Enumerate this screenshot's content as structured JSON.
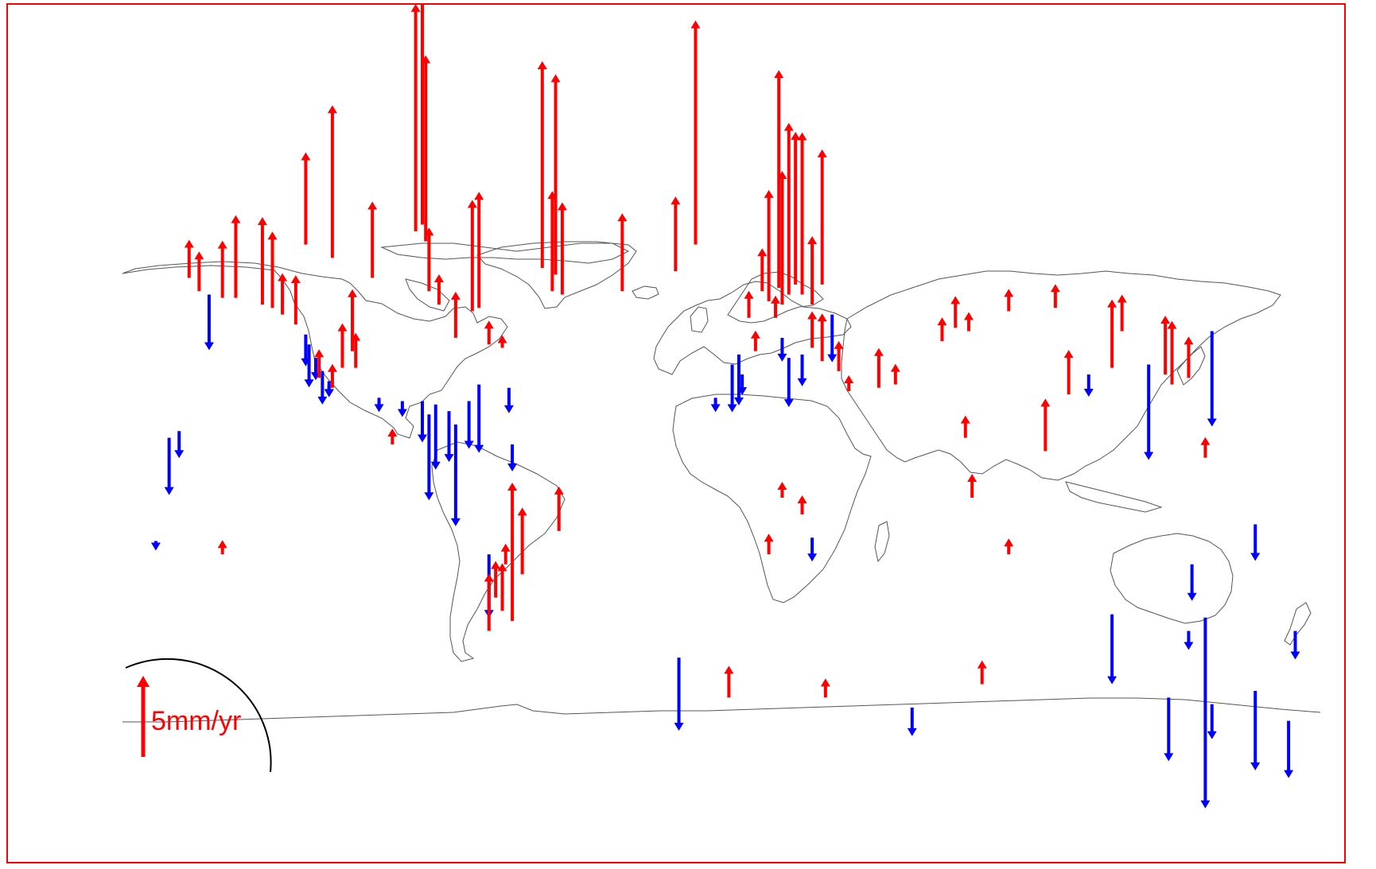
{
  "map": {
    "projection": "plate-carree",
    "lon_range": [
      -180,
      180
    ],
    "colors": {
      "uplift": "#ff0000",
      "subsidence": "#0000ff",
      "coastline": "#555555",
      "frame": "#ff0000"
    },
    "legend": {
      "label": "5mm/yr",
      "value_mm_per_yr": 5,
      "color": "#ff0000"
    },
    "stations": [
      {
        "lon": -160,
        "lat": 66,
        "rate": 2.4
      },
      {
        "lon": -157,
        "lat": 62,
        "rate": 2.5
      },
      {
        "lon": -154,
        "lat": 61,
        "rate": -3.5
      },
      {
        "lon": -150,
        "lat": 60,
        "rate": 3.6
      },
      {
        "lon": -146,
        "lat": 60,
        "rate": 5.2
      },
      {
        "lon": -138,
        "lat": 58,
        "rate": 5.5
      },
      {
        "lon": -135,
        "lat": 57,
        "rate": 4.8
      },
      {
        "lon": -132,
        "lat": 55,
        "rate": 2.6
      },
      {
        "lon": -128,
        "lat": 52,
        "rate": 3.1
      },
      {
        "lon": -125,
        "lat": 49,
        "rate": -2.0
      },
      {
        "lon": -124,
        "lat": 46,
        "rate": -2.7
      },
      {
        "lon": -122,
        "lat": 42,
        "rate": -1.4
      },
      {
        "lon": -120,
        "lat": 38,
        "rate": -2.1
      },
      {
        "lon": -118,
        "lat": 35,
        "rate": -1.0
      },
      {
        "lon": -118,
        "lat": 34,
        "rate": -0.8
      },
      {
        "lon": -121,
        "lat": 36,
        "rate": 1.8
      },
      {
        "lon": -117,
        "lat": 33,
        "rate": 1.5
      },
      {
        "lon": -114,
        "lat": 39,
        "rate": 2.8
      },
      {
        "lon": -111,
        "lat": 44,
        "rate": 3.9
      },
      {
        "lon": -110,
        "lat": 39,
        "rate": 2.2
      },
      {
        "lon": -125,
        "lat": 76,
        "rate": 5.8
      },
      {
        "lon": -117,
        "lat": 72,
        "rate": 9.6
      },
      {
        "lon": -105,
        "lat": 66,
        "rate": 4.8
      },
      {
        "lon": -92,
        "lat": 80,
        "rate": 14.3
      },
      {
        "lon": -90,
        "lat": 82,
        "rate": 14.5
      },
      {
        "lon": -89,
        "lat": 77,
        "rate": 11.7
      },
      {
        "lon": -88,
        "lat": 62,
        "rate": 4.0
      },
      {
        "lon": -85,
        "lat": 58,
        "rate": 1.9
      },
      {
        "lon": -80,
        "lat": 48,
        "rate": 2.9
      },
      {
        "lon": -75,
        "lat": 56,
        "rate": 7.0
      },
      {
        "lon": -73,
        "lat": 57,
        "rate": 7.3
      },
      {
        "lon": -70,
        "lat": 46,
        "rate": 1.5
      },
      {
        "lon": -66,
        "lat": 45,
        "rate": 0.8
      },
      {
        "lon": -103,
        "lat": 30,
        "rate": -0.9
      },
      {
        "lon": -96,
        "lat": 29,
        "rate": -1.0
      },
      {
        "lon": -90,
        "lat": 29,
        "rate": -2.6
      },
      {
        "lon": -88,
        "lat": 25,
        "rate": -5.4
      },
      {
        "lon": -86,
        "lat": 28,
        "rate": -4.1
      },
      {
        "lon": -82,
        "lat": 26,
        "rate": -3.2
      },
      {
        "lon": -80,
        "lat": 22,
        "rate": -6.4
      },
      {
        "lon": -76,
        "lat": 29,
        "rate": -3.0
      },
      {
        "lon": -73,
        "lat": 34,
        "rate": -4.3
      },
      {
        "lon": -64,
        "lat": 33,
        "rate": -1.6
      },
      {
        "lon": -63,
        "lat": 16,
        "rate": -1.7
      },
      {
        "lon": -99,
        "lat": 16,
        "rate": 1.0
      },
      {
        "lon": -54,
        "lat": 69,
        "rate": 13.0
      },
      {
        "lon": -50,
        "lat": 67,
        "rate": 12.6
      },
      {
        "lon": -51,
        "lat": 62,
        "rate": 6.3
      },
      {
        "lon": -48,
        "lat": 61,
        "rate": 5.8
      },
      {
        "lon": -30,
        "lat": 62,
        "rate": 4.9
      },
      {
        "lon": -14,
        "lat": 68,
        "rate": 4.7
      },
      {
        "lon": -8,
        "lat": 76,
        "rate": 14.1
      },
      {
        "lon": 5,
        "lat": 43,
        "rate": -3.2
      },
      {
        "lon": 3,
        "lat": 40,
        "rate": -3.0
      },
      {
        "lon": 6,
        "lat": 37,
        "rate": -1.3
      },
      {
        "lon": -2,
        "lat": 30,
        "rate": -0.9
      },
      {
        "lon": 8,
        "lat": 54,
        "rate": 1.7
      },
      {
        "lon": 10,
        "lat": 44,
        "rate": 1.3
      },
      {
        "lon": 12,
        "lat": 62,
        "rate": 2.7
      },
      {
        "lon": 14,
        "lat": 59,
        "rate": 7.0
      },
      {
        "lon": 17,
        "lat": 63,
        "rate": 13.7
      },
      {
        "lon": 18,
        "lat": 58,
        "rate": 8.4
      },
      {
        "lon": 20,
        "lat": 61,
        "rate": 10.8
      },
      {
        "lon": 22,
        "lat": 64,
        "rate": 9.6
      },
      {
        "lon": 24,
        "lat": 61,
        "rate": 10.2
      },
      {
        "lon": 27,
        "lat": 58,
        "rate": 4.3
      },
      {
        "lon": 30,
        "lat": 64,
        "rate": 8.5
      },
      {
        "lon": 16,
        "lat": 54,
        "rate": 1.4
      },
      {
        "lon": 18,
        "lat": 48,
        "rate": -1.5
      },
      {
        "lon": 20,
        "lat": 42,
        "rate": -3.1
      },
      {
        "lon": 24,
        "lat": 43,
        "rate": -2.0
      },
      {
        "lon": 27,
        "lat": 45,
        "rate": 2.3
      },
      {
        "lon": 30,
        "lat": 41,
        "rate": 3.0
      },
      {
        "lon": 33,
        "lat": 55,
        "rate": -3.0
      },
      {
        "lon": 35,
        "lat": 38,
        "rate": 1.9
      },
      {
        "lon": 38,
        "lat": 32,
        "rate": 1.0
      },
      {
        "lon": 47,
        "lat": 33,
        "rate": 2.5
      },
      {
        "lon": 52,
        "lat": 34,
        "rate": 1.3
      },
      {
        "lon": 66,
        "lat": 47,
        "rate": 1.5
      },
      {
        "lon": 70,
        "lat": 51,
        "rate": 2.0
      },
      {
        "lon": 74,
        "lat": 50,
        "rate": 1.2
      },
      {
        "lon": 86,
        "lat": 56,
        "rate": 1.4
      },
      {
        "lon": 100,
        "lat": 57,
        "rate": 1.5
      },
      {
        "lon": 120,
        "lat": 50,
        "rate": 2.3
      },
      {
        "lon": 133,
        "lat": 37,
        "rate": 3.7
      },
      {
        "lon": 135,
        "lat": 34,
        "rate": 4.0
      },
      {
        "lon": 140,
        "lat": 36,
        "rate": 2.6
      },
      {
        "lon": 117,
        "lat": 39,
        "rate": 4.3
      },
      {
        "lon": 110,
        "lat": 37,
        "rate": -1.4
      },
      {
        "lon": 104,
        "lat": 31,
        "rate": 2.8
      },
      {
        "lon": 97,
        "lat": 14,
        "rate": 3.3
      },
      {
        "lon": 73,
        "lat": 18,
        "rate": 1.4
      },
      {
        "lon": 75,
        "lat": 0,
        "rate": 1.5
      },
      {
        "lon": 128,
        "lat": 40,
        "rate": -6.0
      },
      {
        "lon": 147,
        "lat": 50,
        "rate": -6.0
      },
      {
        "lon": 145,
        "lat": 12,
        "rate": 1.3
      },
      {
        "lon": 141,
        "lat": -20,
        "rate": -2.3
      },
      {
        "lon": 145,
        "lat": -36,
        "rate": -12.0
      },
      {
        "lon": 140,
        "lat": -40,
        "rate": -1.2
      },
      {
        "lon": 117,
        "lat": -35,
        "rate": -4.4
      },
      {
        "lon": 160,
        "lat": -8,
        "rate": -2.3
      },
      {
        "lon": 172,
        "lat": -40,
        "rate": -1.8
      },
      {
        "lon": 160,
        "lat": -58,
        "rate": -5.0
      },
      {
        "lon": 170,
        "lat": -67,
        "rate": -3.6
      },
      {
        "lon": -163,
        "lat": 20,
        "rate": -1.7
      },
      {
        "lon": -166,
        "lat": 18,
        "rate": -3.6
      },
      {
        "lon": -170,
        "lat": -13,
        "rate": -0.6
      },
      {
        "lon": -150,
        "lat": -17,
        "rate": 0.9
      },
      {
        "lon": -70,
        "lat": -17,
        "rate": -4.0
      },
      {
        "lon": -65,
        "lat": -20,
        "rate": 1.3
      },
      {
        "lon": -60,
        "lat": -23,
        "rate": 4.2
      },
      {
        "lon": -68,
        "lat": -30,
        "rate": 2.3
      },
      {
        "lon": -66,
        "lat": -34,
        "rate": 3.0
      },
      {
        "lon": -63,
        "lat": -37,
        "rate": 8.7
      },
      {
        "lon": -70,
        "lat": -40,
        "rate": 3.6
      },
      {
        "lon": -49,
        "lat": -10,
        "rate": 2.8
      },
      {
        "lon": 18,
        "lat": 0,
        "rate": 1.0
      },
      {
        "lon": 14,
        "lat": -17,
        "rate": 1.3
      },
      {
        "lon": 24,
        "lat": -5,
        "rate": 1.2
      },
      {
        "lon": 27,
        "lat": -12,
        "rate": -1.5
      },
      {
        "lon": -13,
        "lat": -48,
        "rate": -4.6
      },
      {
        "lon": 86,
        "lat": -17,
        "rate": 1.0
      },
      {
        "lon": 2,
        "lat": -60,
        "rate": 2.0
      },
      {
        "lon": 31,
        "lat": -60,
        "rate": 1.2
      },
      {
        "lon": 78,
        "lat": -56,
        "rate": 1.5
      },
      {
        "lon": 57,
        "lat": -63,
        "rate": -1.8
      },
      {
        "lon": 134,
        "lat": -60,
        "rate": -4.0
      },
      {
        "lon": 147,
        "lat": -62,
        "rate": -2.2
      }
    ]
  }
}
